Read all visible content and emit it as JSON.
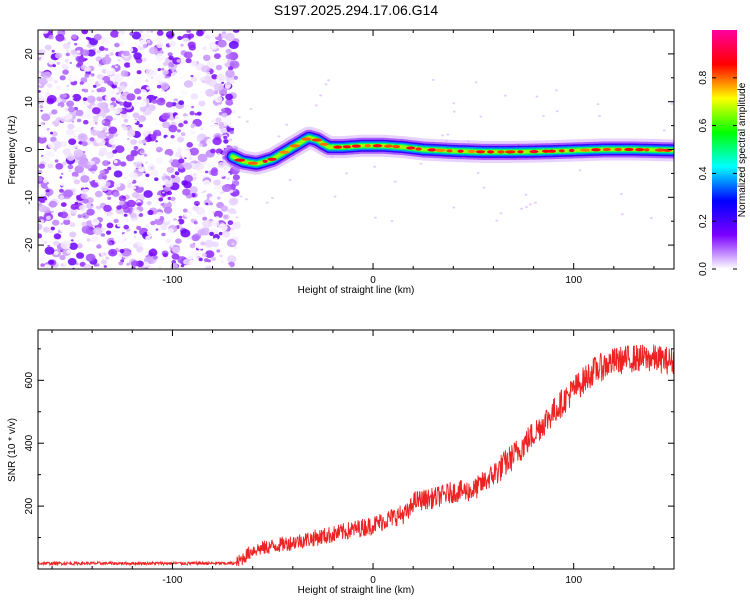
{
  "title": "S197.2025.294.17.06.G14",
  "chart_data": [
    {
      "type": "heatmap",
      "name": "spectrogram",
      "xlabel": "Height of straight line (km)",
      "ylabel": "Frequency (Hz)",
      "xlim": [
        -167,
        150
      ],
      "ylim": [
        -25,
        25
      ],
      "xticks": [
        -100,
        0,
        100
      ],
      "yticks": [
        -20,
        -10,
        0,
        10,
        20
      ],
      "noise_region_x": [
        -167,
        -68
      ],
      "ridge": {
        "x": [
          -70,
          -65,
          -58,
          -50,
          -42,
          -36,
          -32,
          -28,
          -22,
          -15,
          -5,
          5,
          15,
          25,
          40,
          55,
          70,
          85,
          100,
          115,
          130,
          150
        ],
        "freq": [
          -1.5,
          -2.5,
          -3.0,
          -2.0,
          0.0,
          1.5,
          2.5,
          2.0,
          0.5,
          0.5,
          0.8,
          0.8,
          0.5,
          0.0,
          -0.3,
          -0.5,
          -0.5,
          -0.4,
          -0.2,
          0.0,
          0.0,
          -0.2
        ]
      },
      "colorbar": {
        "label": "Normalized spectral amplitude",
        "ticks": [
          "0.0",
          "0.2",
          "0.4",
          "0.6",
          "0.8"
        ],
        "stops": [
          "#ffffff",
          "#7a00ff",
          "#0000ff",
          "#00ffff",
          "#00ff00",
          "#ffff00",
          "#ff0000",
          "#ff00a0"
        ]
      }
    },
    {
      "type": "line",
      "name": "snr",
      "xlabel": "Height of straight line (km)",
      "ylabel": "SNR (10 * v/v)",
      "xlim": [
        -167,
        150
      ],
      "ylim": [
        0,
        760
      ],
      "xticks": [
        -100,
        0,
        100
      ],
      "yticks": [
        200,
        400,
        600
      ],
      "color": "#ee2222",
      "x": [
        -167,
        -120,
        -68,
        -60,
        -40,
        -20,
        0,
        10,
        18,
        20,
        30,
        40,
        50,
        60,
        70,
        80,
        90,
        100,
        110,
        120,
        130,
        140,
        150
      ],
      "y": [
        18,
        18,
        18,
        60,
        85,
        110,
        140,
        165,
        180,
        215,
        225,
        245,
        250,
        300,
        360,
        430,
        500,
        570,
        630,
        660,
        670,
        670,
        660
      ]
    }
  ]
}
